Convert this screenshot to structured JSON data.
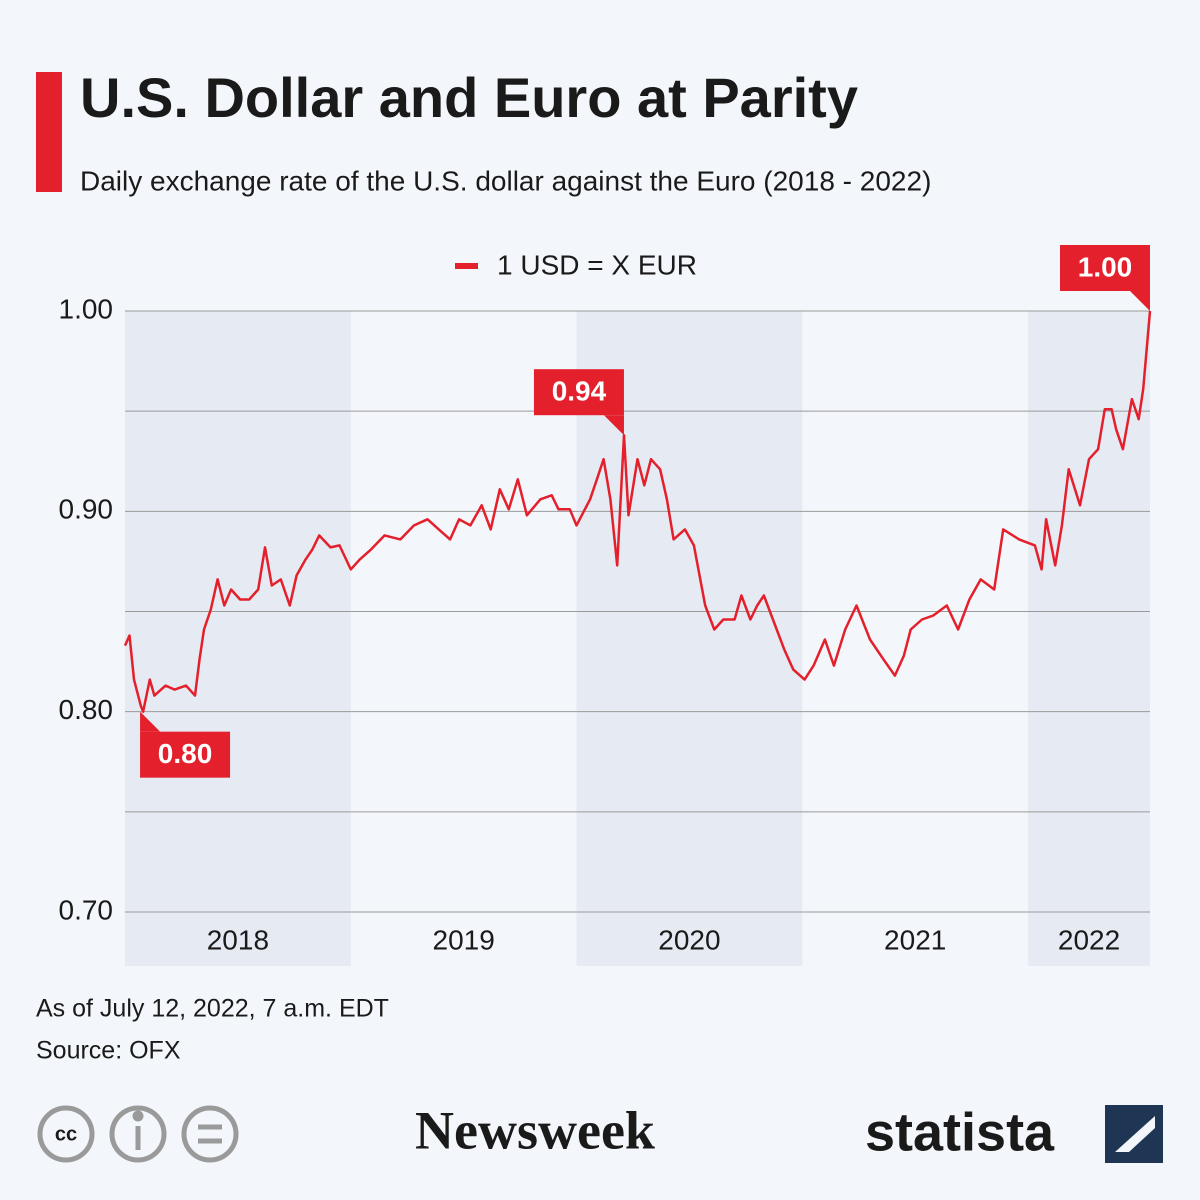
{
  "chart_data": {
    "type": "line",
    "title": "U.S. Dollar and Euro at Parity",
    "subtitle": "Daily exchange rate of the U.S. dollar against the Euro (2018 - 2022)",
    "series": [
      {
        "name": "1 USD = X EUR",
        "color": "#e3202b",
        "x": [
          2018.0,
          2018.02,
          2018.04,
          2018.07,
          2018.08,
          2018.11,
          2018.13,
          2018.18,
          2018.22,
          2018.27,
          2018.31,
          2018.33,
          2018.35,
          2018.38,
          2018.41,
          2018.44,
          2018.47,
          2018.51,
          2018.55,
          2018.59,
          2018.62,
          2018.65,
          2018.69,
          2018.73,
          2018.76,
          2018.8,
          2018.83,
          2018.86,
          2018.91,
          2018.95,
          2019.0,
          2019.04,
          2019.09,
          2019.15,
          2019.22,
          2019.28,
          2019.34,
          2019.39,
          2019.44,
          2019.48,
          2019.53,
          2019.58,
          2019.62,
          2019.66,
          2019.7,
          2019.74,
          2019.78,
          2019.84,
          2019.89,
          2019.92,
          2019.97,
          2020.0,
          2020.06,
          2020.09,
          2020.12,
          2020.15,
          2020.18,
          2020.21,
          2020.23,
          2020.27,
          2020.3,
          2020.33,
          2020.37,
          2020.4,
          2020.43,
          2020.48,
          2020.52,
          2020.57,
          2020.61,
          2020.65,
          2020.7,
          2020.73,
          2020.77,
          2020.8,
          2020.83,
          2020.88,
          2020.92,
          2020.96,
          2021.01,
          2021.05,
          2021.1,
          2021.14,
          2021.19,
          2021.24,
          2021.3,
          2021.36,
          2021.41,
          2021.45,
          2021.48,
          2021.53,
          2021.58,
          2021.64,
          2021.69,
          2021.74,
          2021.79,
          2021.85,
          2021.89,
          2021.96,
          2022.03,
          2022.06,
          2022.08,
          2022.12,
          2022.15,
          2022.18,
          2022.23,
          2022.27,
          2022.31,
          2022.34,
          2022.37,
          2022.39,
          2022.42,
          2022.46,
          2022.49,
          2022.51,
          2022.54
        ],
        "values": [
          0.833,
          0.838,
          0.816,
          0.803,
          0.8,
          0.816,
          0.808,
          0.813,
          0.811,
          0.813,
          0.808,
          0.826,
          0.841,
          0.851,
          0.866,
          0.853,
          0.861,
          0.856,
          0.856,
          0.861,
          0.882,
          0.863,
          0.866,
          0.853,
          0.868,
          0.876,
          0.881,
          0.888,
          0.882,
          0.883,
          0.871,
          0.876,
          0.881,
          0.888,
          0.886,
          0.893,
          0.896,
          0.891,
          0.886,
          0.896,
          0.893,
          0.903,
          0.891,
          0.911,
          0.901,
          0.916,
          0.898,
          0.906,
          0.908,
          0.901,
          0.901,
          0.893,
          0.906,
          0.916,
          0.926,
          0.906,
          0.873,
          0.938,
          0.898,
          0.926,
          0.913,
          0.926,
          0.921,
          0.906,
          0.886,
          0.891,
          0.883,
          0.853,
          0.841,
          0.846,
          0.846,
          0.858,
          0.846,
          0.853,
          0.858,
          0.843,
          0.831,
          0.821,
          0.816,
          0.823,
          0.836,
          0.823,
          0.841,
          0.853,
          0.836,
          0.826,
          0.818,
          0.828,
          0.841,
          0.846,
          0.848,
          0.853,
          0.841,
          0.856,
          0.866,
          0.861,
          0.891,
          0.886,
          0.883,
          0.871,
          0.896,
          0.873,
          0.893,
          0.921,
          0.903,
          0.926,
          0.931,
          0.951,
          0.951,
          0.941,
          0.931,
          0.956,
          0.946,
          0.961,
          1.0
        ]
      }
    ],
    "xlim": [
      2018.0,
      2022.54
    ],
    "xticks": [
      {
        "value": 2018.5,
        "label": "2018"
      },
      {
        "value": 2019.5,
        "label": "2019"
      },
      {
        "value": 2020.5,
        "label": "2020"
      },
      {
        "value": 2021.5,
        "label": "2021"
      },
      {
        "value": 2022.27,
        "label": "2022"
      }
    ],
    "ylim": [
      0.7,
      1.0
    ],
    "yticks": [
      {
        "value": 0.7,
        "label": "0.70"
      },
      {
        "value": 0.8,
        "label": "0.80"
      },
      {
        "value": 0.9,
        "label": "0.90"
      },
      {
        "value": 1.0,
        "label": "1.00"
      }
    ],
    "minor_yticks": [
      0.75,
      0.85,
      0.95
    ],
    "grid": true,
    "legend": "top",
    "annotations": [
      {
        "x": 2018.08,
        "value": 0.8,
        "label": "0.80"
      },
      {
        "x": 2020.21,
        "value": 0.938,
        "label": "0.94"
      },
      {
        "x": 2022.54,
        "value": 1.0,
        "label": "1.00"
      }
    ]
  },
  "footer": {
    "note": "As of July 12, 2022, 7 a.m. EDT",
    "source": "Source: OFX",
    "publisher": "Newsweek",
    "brand": "statista"
  }
}
